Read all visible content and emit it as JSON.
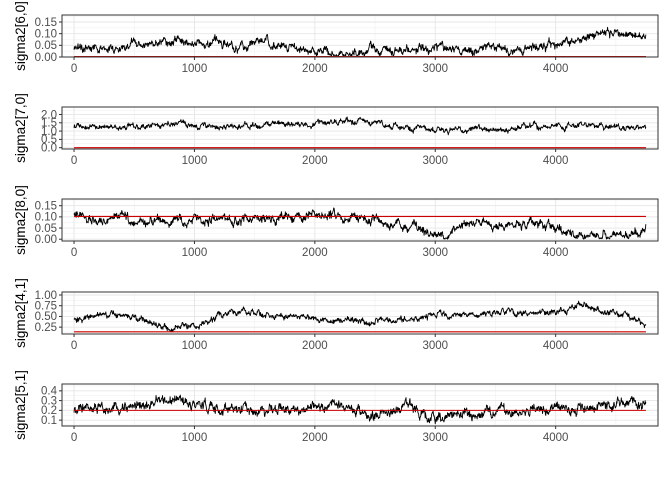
{
  "chart_data": [
    {
      "type": "line",
      "ylabel": "sigma2[6,0]",
      "x_ticks": [
        0,
        1000,
        2000,
        3000,
        4000
      ],
      "y_ticks": [
        0.0,
        0.05,
        0.1,
        0.15
      ],
      "y_tick_labels": [
        "0.00",
        "0.05",
        "0.10",
        "0.15"
      ],
      "xlim": [
        -100,
        4850
      ],
      "ylim": [
        0.0,
        0.18
      ],
      "n_draws": 4750,
      "reference_line": 0.002,
      "trace_profile": {
        "x": [
          0,
          200,
          500,
          750,
          1000,
          1300,
          1600,
          1900,
          2100,
          2300,
          2600,
          2900,
          3200,
          3500,
          3800,
          4000,
          4200,
          4400,
          4600,
          4750
        ],
        "y": [
          0.045,
          0.035,
          0.05,
          0.075,
          0.06,
          0.05,
          0.065,
          0.035,
          0.02,
          0.015,
          0.03,
          0.04,
          0.04,
          0.035,
          0.04,
          0.05,
          0.08,
          0.11,
          0.1,
          0.085
        ]
      },
      "volatility": 0.018,
      "y_min": 0.002,
      "y_max": 0.178,
      "trace_color": "#000000",
      "reference_color": "#cc0000",
      "grid": true
    },
    {
      "type": "line",
      "ylabel": "sigma2[7,0]",
      "x_ticks": [
        0,
        1000,
        2000,
        3000,
        4000
      ],
      "y_ticks": [
        0.0,
        0.5,
        1.0,
        1.5,
        2.0
      ],
      "y_tick_labels": [
        "0.0",
        "0.5",
        "1.0",
        "1.5",
        "2.0"
      ],
      "xlim": [
        -100,
        4850
      ],
      "ylim": [
        -0.08,
        2.45
      ],
      "n_draws": 4750,
      "reference_line": 0.0,
      "trace_profile": {
        "x": [
          0,
          400,
          750,
          1000,
          1500,
          2000,
          2400,
          2600,
          3000,
          3400,
          3800,
          4200,
          4600,
          4750
        ],
        "y": [
          1.3,
          1.2,
          1.45,
          1.25,
          1.3,
          1.4,
          1.6,
          1.3,
          1.15,
          1.1,
          1.25,
          1.35,
          1.25,
          1.2
        ]
      },
      "volatility": 0.17,
      "y_min": 0.7,
      "y_max": 2.4,
      "trace_color": "#000000",
      "reference_color": "#cc0000",
      "grid": true
    },
    {
      "type": "line",
      "ylabel": "sigma2[8,0]",
      "x_ticks": [
        0,
        1000,
        2000,
        3000,
        4000
      ],
      "y_ticks": [
        0.0,
        0.05,
        0.1,
        0.15
      ],
      "y_tick_labels": [
        "0.00",
        "0.05",
        "0.10",
        "0.15"
      ],
      "xlim": [
        -100,
        4850
      ],
      "ylim": [
        -0.008,
        0.18
      ],
      "n_draws": 4750,
      "reference_line": 0.102,
      "trace_profile": {
        "x": [
          0,
          300,
          600,
          1000,
          1400,
          1800,
          2200,
          2600,
          2900,
          3100,
          3300,
          3600,
          3900,
          4100,
          4300,
          4500,
          4750
        ],
        "y": [
          0.1,
          0.085,
          0.08,
          0.09,
          0.085,
          0.1,
          0.1,
          0.075,
          0.04,
          0.02,
          0.075,
          0.06,
          0.07,
          0.025,
          0.005,
          0.015,
          0.03
        ]
      },
      "volatility": 0.02,
      "y_min": 0.0,
      "y_max": 0.175,
      "trace_color": "#000000",
      "reference_color": "#cc0000",
      "grid": true
    },
    {
      "type": "line",
      "ylabel": "sigma2[4,1]",
      "x_ticks": [
        0,
        1000,
        2000,
        3000,
        4000
      ],
      "y_ticks": [
        0.25,
        0.5,
        0.75,
        1.0
      ],
      "y_tick_labels": [
        "0.25",
        "0.50",
        "0.75",
        "1.00"
      ],
      "xlim": [
        -100,
        4850
      ],
      "ylim": [
        0.09,
        1.07
      ],
      "n_draws": 4750,
      "reference_line": 0.14,
      "trace_profile": {
        "x": [
          0,
          300,
          600,
          800,
          1000,
          1300,
          1600,
          2000,
          2400,
          2800,
          3200,
          3600,
          4000,
          4250,
          4500,
          4750
        ],
        "y": [
          0.45,
          0.55,
          0.4,
          0.2,
          0.3,
          0.6,
          0.55,
          0.45,
          0.4,
          0.45,
          0.55,
          0.6,
          0.6,
          0.75,
          0.55,
          0.35
        ]
      },
      "volatility": 0.07,
      "y_min": 0.15,
      "y_max": 1.05,
      "trace_color": "#000000",
      "reference_color": "#cc0000",
      "grid": true
    },
    {
      "type": "line",
      "ylabel": "sigma2[5,1]",
      "x_ticks": [
        0,
        1000,
        2000,
        3000,
        4000
      ],
      "y_ticks": [
        0.1,
        0.2,
        0.3,
        0.4
      ],
      "y_tick_labels": [
        "0.1",
        "0.2",
        "0.3",
        "0.4"
      ],
      "xlim": [
        -100,
        4850
      ],
      "ylim": [
        0.04,
        0.47
      ],
      "n_draws": 4750,
      "reference_line": 0.2,
      "trace_profile": {
        "x": [
          0,
          300,
          700,
          1000,
          1400,
          1800,
          2200,
          2500,
          2800,
          3000,
          3300,
          3700,
          4000,
          4400,
          4750
        ],
        "y": [
          0.2,
          0.22,
          0.3,
          0.25,
          0.2,
          0.22,
          0.25,
          0.15,
          0.2,
          0.12,
          0.18,
          0.2,
          0.22,
          0.25,
          0.28
        ]
      },
      "volatility": 0.05,
      "y_min": 0.05,
      "y_max": 0.46,
      "trace_color": "#000000",
      "reference_color": "#cc0000",
      "grid": true
    }
  ]
}
